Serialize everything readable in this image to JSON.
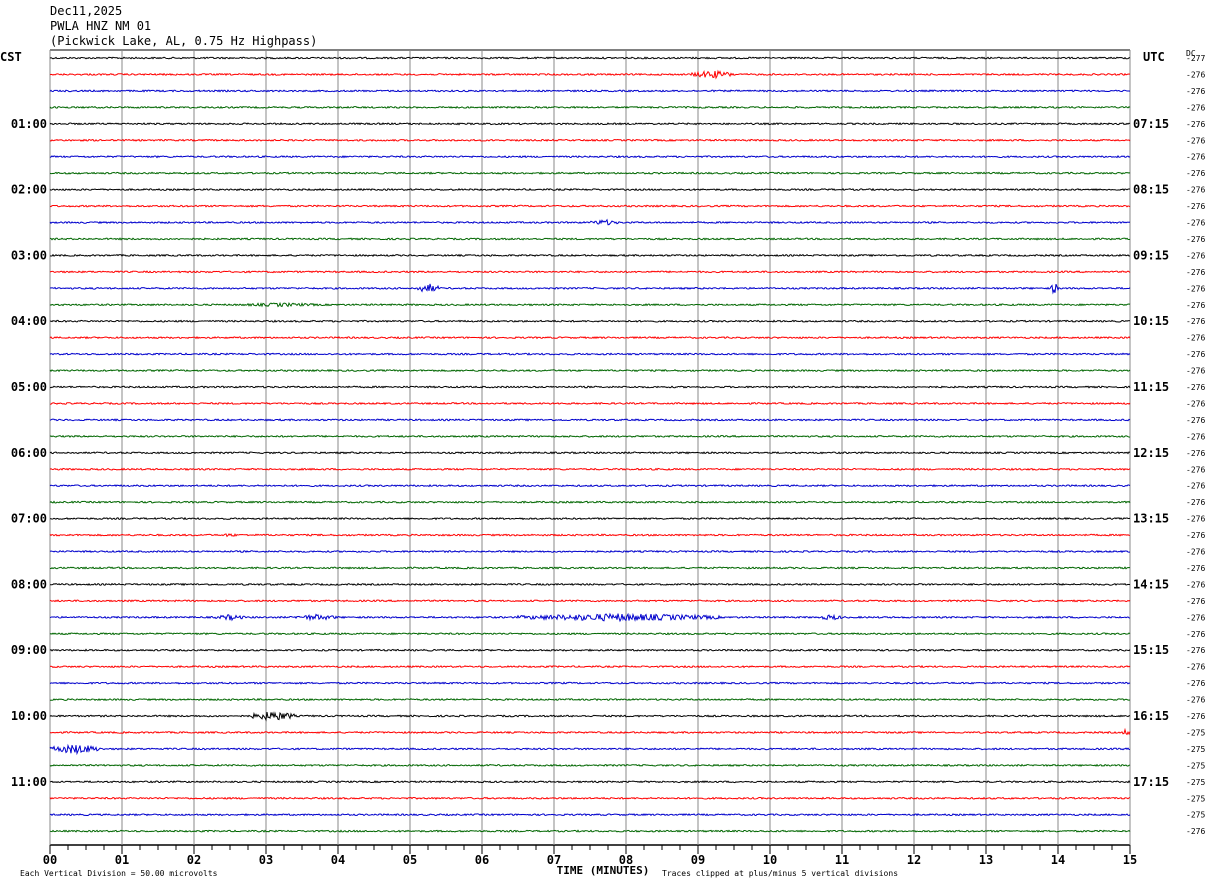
{
  "header": {
    "date": "Dec11,2025",
    "station": "PWLA HNZ NM 01",
    "location": "(Pickwick Lake, AL, 0.75 Hz Highpass)"
  },
  "left_tz": "CST",
  "right_tz": "UTC",
  "dc_label": "DC",
  "footer": {
    "scale": "Each Vertical Division =   50.00 microvolts",
    "xlabel": "TIME (MINUTES)",
    "clip_note": "Traces clipped at plus/minus 5 vertical divisions"
  },
  "chart_data": {
    "type": "line",
    "title": "PWLA HNZ NM 01",
    "xlabel": "TIME (MINUTES)",
    "x_ticks": [
      "00",
      "01",
      "02",
      "03",
      "04",
      "05",
      "06",
      "07",
      "08",
      "09",
      "10",
      "11",
      "12",
      "13",
      "14",
      "15"
    ],
    "xlim": [
      0,
      15
    ],
    "trace_count": 48,
    "trace_colors": [
      "#000000",
      "#ff0000",
      "#0000cc",
      "#006600"
    ],
    "left_hour_labels": [
      "01:00",
      "02:00",
      "03:00",
      "04:00",
      "05:00",
      "06:00",
      "07:00",
      "08:00",
      "09:00",
      "10:00",
      "11:00"
    ],
    "right_hour_labels": [
      "07:15",
      "08:15",
      "09:15",
      "10:15",
      "11:15",
      "12:15",
      "13:15",
      "14:15",
      "15:15",
      "16:15",
      "17:15"
    ],
    "dc_values": [
      "-277",
      "-276",
      "-276",
      "-276",
      "-276",
      "-276",
      "-276",
      "-276",
      "-276",
      "-276",
      "-276",
      "-276",
      "-276",
      "-276",
      "-276",
      "-276",
      "-276",
      "-276",
      "-276",
      "-276",
      "-276",
      "-276",
      "-276",
      "-276",
      "-276",
      "-276",
      "-276",
      "-276",
      "-276",
      "-276",
      "-276",
      "-276",
      "-276",
      "-276",
      "-276",
      "-276",
      "-276",
      "-276",
      "-276",
      "-276",
      "-276",
      "-275",
      "-275",
      "-275",
      "-275",
      "-275",
      "-275",
      "-276"
    ],
    "grid": true,
    "events": [
      {
        "trace": 1,
        "start_min": 8.9,
        "end_min": 9.5,
        "amp": 4
      },
      {
        "trace": 10,
        "start_min": 7.5,
        "end_min": 7.9,
        "amp": 3
      },
      {
        "trace": 14,
        "start_min": 5.1,
        "end_min": 5.4,
        "amp": 5
      },
      {
        "trace": 14,
        "start_min": 13.9,
        "end_min": 14.0,
        "amp": 6
      },
      {
        "trace": 15,
        "start_min": 2.6,
        "end_min": 3.8,
        "amp": 2
      },
      {
        "trace": 29,
        "start_min": 2.4,
        "end_min": 2.6,
        "amp": 2
      },
      {
        "trace": 34,
        "start_min": 2.3,
        "end_min": 2.7,
        "amp": 3
      },
      {
        "trace": 34,
        "start_min": 3.4,
        "end_min": 4.0,
        "amp": 3
      },
      {
        "trace": 34,
        "start_min": 6.5,
        "end_min": 9.3,
        "amp": 4
      },
      {
        "trace": 34,
        "start_min": 10.7,
        "end_min": 11.0,
        "amp": 3
      },
      {
        "trace": 40,
        "start_min": 2.8,
        "end_min": 3.4,
        "amp": 5
      },
      {
        "trace": 41,
        "start_min": 14.9,
        "end_min": 15.0,
        "amp": 4
      },
      {
        "trace": 42,
        "start_min": 0.0,
        "end_min": 0.7,
        "amp": 5
      }
    ]
  }
}
